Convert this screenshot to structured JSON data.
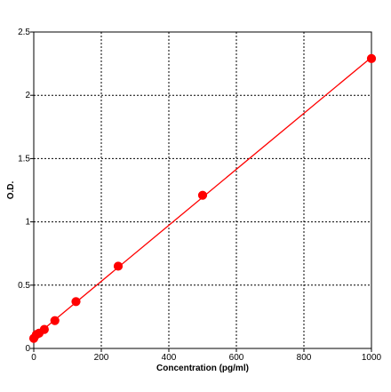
{
  "chart_data": {
    "type": "scatter",
    "title": "",
    "xlabel": "Concentration (pg/ml)",
    "ylabel": "O.D.",
    "xlim": [
      0,
      1000
    ],
    "ylim": [
      0,
      2.5
    ],
    "x_ticks": [
      "0",
      "200",
      "400",
      "600",
      "800",
      "1000"
    ],
    "y_ticks": [
      "0",
      "0.5",
      "1",
      "1.5",
      "2",
      "2.5"
    ],
    "x_tick_values": [
      0,
      200,
      400,
      600,
      800,
      1000
    ],
    "y_tick_values": [
      0,
      0.5,
      1,
      1.5,
      2,
      2.5
    ],
    "grid": true,
    "grid_style": "dotted",
    "series": [
      {
        "color": "#ff0000",
        "marker": "filled-circle",
        "trend_line": "linear",
        "points": [
          {
            "x": 0,
            "y": 0.08
          },
          {
            "x": 7.8,
            "y": 0.11
          },
          {
            "x": 15.6,
            "y": 0.12
          },
          {
            "x": 31.25,
            "y": 0.15
          },
          {
            "x": 62.5,
            "y": 0.22
          },
          {
            "x": 125,
            "y": 0.37
          },
          {
            "x": 250,
            "y": 0.65
          },
          {
            "x": 500,
            "y": 1.21
          },
          {
            "x": 1000,
            "y": 2.29
          }
        ]
      }
    ]
  }
}
